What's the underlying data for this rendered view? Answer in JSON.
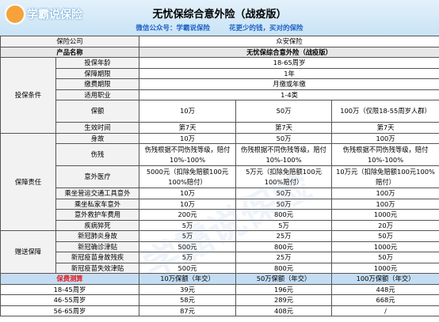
{
  "header": {
    "logo": "学霸说保险",
    "title": "无忧保综合意外险（战疫版）",
    "subtitle_left": "微信公众号：学霸说保险",
    "subtitle_right": "花更少的钱，买对的保险"
  },
  "watermark": "学霸说保险",
  "table": {
    "top": [
      {
        "label": "保险公司",
        "value": "众安保险"
      },
      {
        "label": "产品名称",
        "value": "无忧保综合意外险（战疫版）"
      }
    ],
    "groups": [
      {
        "name": "投保条件",
        "rows": [
          {
            "label": "投保年龄",
            "cells": [
              "18-65周岁"
            ]
          },
          {
            "label": "保障期限",
            "cells": [
              "1年"
            ]
          },
          {
            "label": "缴费期限",
            "cells": [
              "月缴或年缴"
            ]
          },
          {
            "label": "适用职业",
            "cells": [
              "1-4类"
            ]
          },
          {
            "label": "保额",
            "cells": [
              "10万",
              "50万",
              "100万（仅限18-55周岁人群）"
            ]
          },
          {
            "label": "生效时间",
            "cells": [
              "第7天",
              "第7天",
              "第7天"
            ]
          }
        ]
      },
      {
        "name": "保障责任",
        "rows": [
          {
            "label": "身故",
            "cells": [
              "10万",
              "50万",
              "100万"
            ]
          },
          {
            "label": "伤残",
            "cells": [
              "伤残根据不同伤残等级，赔付10%-100%",
              "伤残根据不同伤残等级，赔付10%-100%",
              "伤残根据不同伤残等级，赔付10%-100%"
            ]
          },
          {
            "label": "意外医疗",
            "cells": [
              "5000元（扣除免赔额100元100%赔付）",
              "5万元（扣除免赔额100元100%赔付）",
              "10万元（扣除免赔额100元100%赔付）"
            ]
          },
          {
            "label": "乘坐营运交通工具意外",
            "cells": [
              "10万",
              "50万",
              "100万"
            ]
          },
          {
            "label": "乘坐私家车意外",
            "cells": [
              "10万",
              "50万",
              "100万"
            ]
          },
          {
            "label": "意外救护车费用",
            "cells": [
              "200元",
              "800元",
              "1000元"
            ]
          },
          {
            "label": "疾病猝死",
            "cells": [
              "5万",
              "5万",
              "20万"
            ]
          }
        ]
      },
      {
        "name": "赠送保障",
        "rows": [
          {
            "label": "新冠肺炎身故",
            "cells": [
              "5万",
              "25万",
              "50万"
            ]
          },
          {
            "label": "新冠确诊津贴",
            "cells": [
              "500元",
              "800元",
              "1000元"
            ]
          },
          {
            "label": "新冠疫苗身故残疾",
            "cells": [
              "5万",
              "25万",
              "50万"
            ]
          },
          {
            "label": "新冠疫苗失效津贴",
            "cells": [
              "500元",
              "800元",
              "1000元"
            ]
          }
        ]
      }
    ],
    "premium": {
      "label": "保费测算",
      "columns": [
        "10万保额（年交）",
        "50万保额（年交）",
        "100万保额（年交）"
      ],
      "rows": [
        {
          "label": "18-45周岁",
          "cells": [
            "39元",
            "196元",
            "448元"
          ]
        },
        {
          "label": "46-55周岁",
          "cells": [
            "58元",
            "289元",
            "668元"
          ]
        },
        {
          "label": "56-65周岁",
          "cells": [
            "87元",
            "408元",
            "/"
          ]
        }
      ]
    }
  }
}
